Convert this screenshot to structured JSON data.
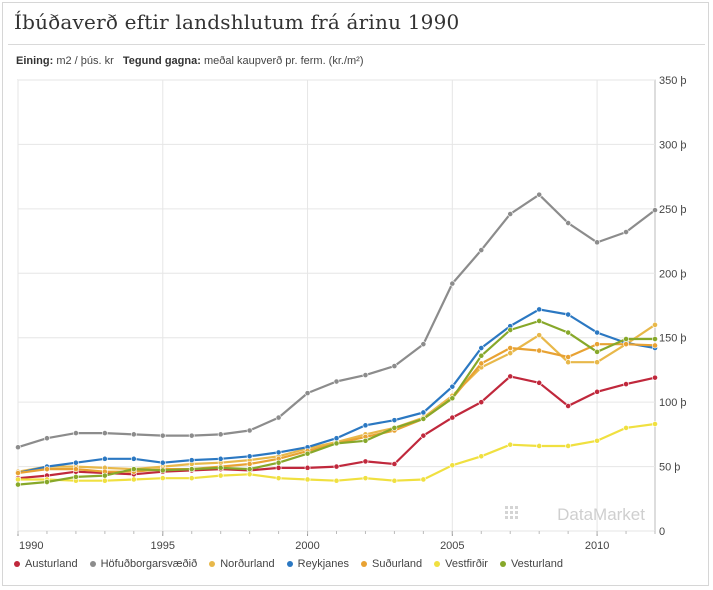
{
  "title": "Íbúðaverð eftir landshlutum frá árinu 1990",
  "meta": {
    "unit_label": "Eining:",
    "unit_value": "m2 / þús. kr",
    "type_label": "Tegund gagna:",
    "type_value": "meðal kaupverð pr. ferm. (kr./m²)"
  },
  "watermark": "DataMarket",
  "chart_data": {
    "type": "line",
    "x": [
      1990,
      1991,
      1992,
      1993,
      1994,
      1995,
      1996,
      1997,
      1998,
      1999,
      2000,
      2001,
      2002,
      2003,
      2004,
      2005,
      2006,
      2007,
      2008,
      2009,
      2010,
      2011,
      2012
    ],
    "xlim": [
      1990,
      2012
    ],
    "ylim": [
      0,
      350
    ],
    "x_ticks": [
      1990,
      1995,
      2000,
      2005,
      2010
    ],
    "x_tick_labels": [
      "1990",
      "1995",
      "2000",
      "2005",
      "2010"
    ],
    "y_ticks": [
      0,
      50,
      100,
      150,
      200,
      250,
      300,
      350
    ],
    "y_tick_labels": [
      "0",
      "50 þ",
      "100 þ",
      "150 þ",
      "200 þ",
      "250 þ",
      "300 þ",
      "350 þ"
    ],
    "grid": true,
    "legend_position": "bottom",
    "series": [
      {
        "name": "Austurland",
        "color": "#c0283c",
        "values": [
          41,
          43,
          46,
          45,
          44,
          46,
          47,
          48,
          47,
          49,
          49,
          50,
          54,
          52,
          74,
          88,
          100,
          120,
          115,
          97,
          108,
          114,
          119
        ]
      },
      {
        "name": "Höfuðborgarsvæðið",
        "color": "#8c8c8c",
        "values": [
          65,
          72,
          76,
          76,
          75,
          74,
          74,
          75,
          78,
          88,
          107,
          116,
          121,
          128,
          145,
          192,
          218,
          246,
          261,
          239,
          224,
          232,
          249
        ]
      },
      {
        "name": "Norðurland",
        "color": "#e8b84a",
        "values": [
          46,
          50,
          50,
          49,
          48,
          50,
          52,
          53,
          55,
          58,
          64,
          69,
          75,
          80,
          88,
          105,
          127,
          138,
          152,
          131,
          131,
          145,
          160
        ]
      },
      {
        "name": "Reykjanes",
        "color": "#2b78c2",
        "values": [
          45,
          50,
          53,
          56,
          56,
          53,
          55,
          56,
          58,
          61,
          65,
          72,
          82,
          86,
          92,
          112,
          142,
          159,
          172,
          168,
          154,
          146,
          142
        ]
      },
      {
        "name": "Suðurland",
        "color": "#e8a233",
        "values": [
          45,
          48,
          48,
          46,
          46,
          48,
          48,
          50,
          52,
          56,
          62,
          68,
          73,
          78,
          87,
          103,
          130,
          142,
          140,
          135,
          145,
          145,
          144
        ]
      },
      {
        "name": "Vestfirðir",
        "color": "#f0e040",
        "values": [
          40,
          40,
          39,
          39,
          40,
          41,
          41,
          43,
          44,
          41,
          40,
          39,
          41,
          39,
          40,
          51,
          58,
          67,
          66,
          66,
          70,
          80,
          83
        ]
      },
      {
        "name": "Vesturland",
        "color": "#87a82a",
        "values": [
          36,
          38,
          42,
          43,
          48,
          47,
          48,
          49,
          48,
          53,
          60,
          68,
          70,
          80,
          87,
          103,
          136,
          156,
          163,
          154,
          139,
          149,
          149
        ]
      }
    ]
  }
}
